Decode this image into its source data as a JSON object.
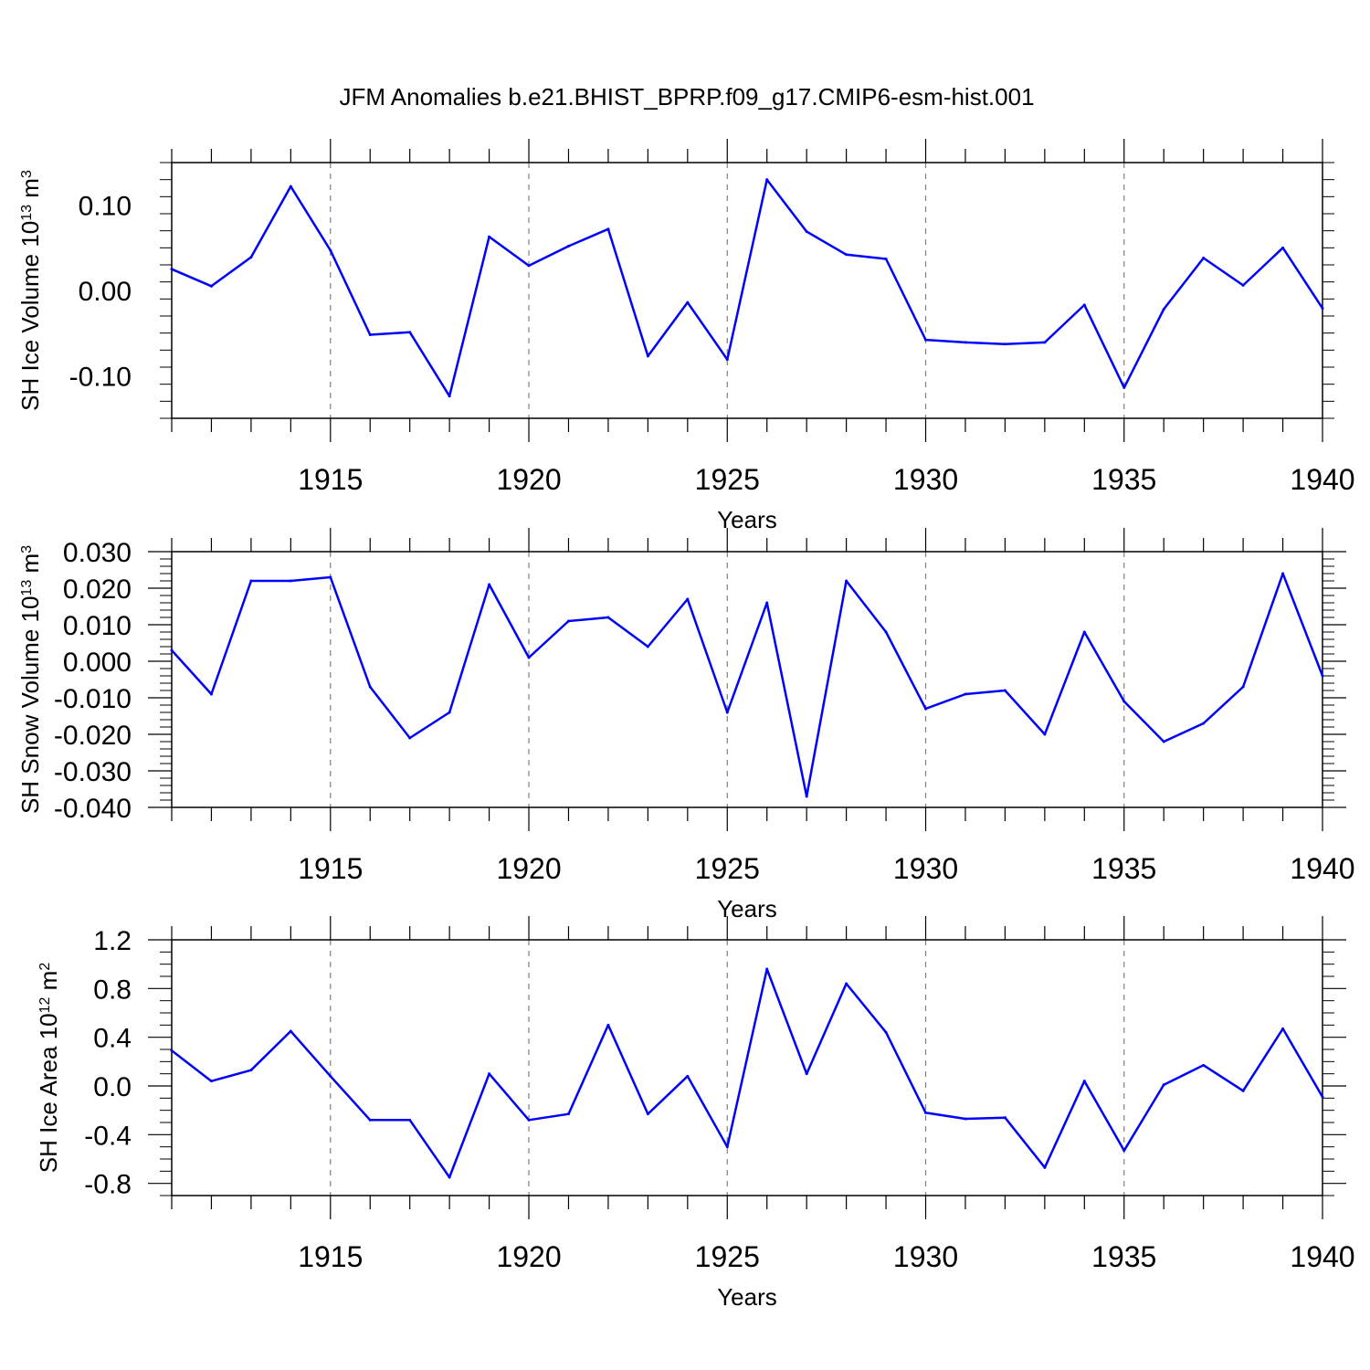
{
  "title": "JFM Anomalies b.e21.BHIST_BPRP.f09_g17.CMIP6-esm-hist.001",
  "style": {
    "line_color": "#0000ff",
    "axis_color": "#000000",
    "grid_color": "#808080",
    "background": "#ffffff"
  },
  "chart_data": [
    {
      "type": "line",
      "ylabel_base": "SH Ice Volume 10",
      "ylabel_exp": "13",
      "ylabel_unit": " m",
      "ylabel_unit_exp": "3",
      "xlabel": "Years",
      "xlim": [
        1911,
        1940
      ],
      "ylim": [
        -0.15,
        0.15
      ],
      "yticks": [
        -0.1,
        0.0,
        0.1
      ],
      "ytick_labels": [
        "-0.10",
        "0.00",
        "0.10"
      ],
      "yminor_step": 0.02,
      "xticks": [
        1915,
        1920,
        1925,
        1930,
        1935,
        1940
      ],
      "xtick_labels": [
        "1915",
        "1920",
        "1925",
        "1930",
        "1935",
        "1940"
      ],
      "grid": "dashed vertical at major x ticks",
      "x": [
        1911,
        1912,
        1913,
        1914,
        1915,
        1916,
        1917,
        1918,
        1919,
        1920,
        1921,
        1922,
        1923,
        1924,
        1925,
        1926,
        1927,
        1928,
        1929,
        1930,
        1931,
        1932,
        1933,
        1934,
        1935,
        1936,
        1937,
        1938,
        1939,
        1940
      ],
      "values": [
        0.025,
        0.005,
        0.039,
        0.122,
        0.047,
        -0.052,
        -0.049,
        -0.124,
        0.063,
        0.029,
        0.052,
        0.072,
        -0.077,
        -0.014,
        -0.081,
        0.13,
        0.069,
        0.042,
        0.037,
        -0.058,
        -0.061,
        -0.063,
        -0.061,
        -0.017,
        -0.114,
        -0.022,
        0.038,
        0.006,
        0.05,
        -0.021
      ]
    },
    {
      "type": "line",
      "ylabel_base": "SH Snow Volume 10",
      "ylabel_exp": "13",
      "ylabel_unit": " m",
      "ylabel_unit_exp": "3",
      "xlabel": "Years",
      "xlim": [
        1911,
        1940
      ],
      "ylim": [
        -0.04,
        0.03
      ],
      "yticks": [
        -0.04,
        -0.03,
        -0.02,
        -0.01,
        0.0,
        0.01,
        0.02,
        0.03
      ],
      "ytick_labels": [
        "-0.040",
        "-0.030",
        "-0.020",
        "-0.010",
        "0.000",
        "0.010",
        "0.020",
        "0.030"
      ],
      "yminor_step": 0.002,
      "xticks": [
        1915,
        1920,
        1925,
        1930,
        1935,
        1940
      ],
      "xtick_labels": [
        "1915",
        "1920",
        "1925",
        "1930",
        "1935",
        "1940"
      ],
      "grid": "dashed vertical at major x ticks",
      "x": [
        1911,
        1912,
        1913,
        1914,
        1915,
        1916,
        1917,
        1918,
        1919,
        1920,
        1921,
        1922,
        1923,
        1924,
        1925,
        1926,
        1927,
        1928,
        1929,
        1930,
        1931,
        1932,
        1933,
        1934,
        1935,
        1936,
        1937,
        1938,
        1939,
        1940
      ],
      "values": [
        0.003,
        -0.009,
        0.022,
        0.022,
        0.023,
        -0.007,
        -0.021,
        -0.014,
        0.021,
        0.001,
        0.011,
        0.012,
        0.004,
        0.017,
        -0.014,
        0.016,
        -0.037,
        0.022,
        0.008,
        -0.013,
        -0.009,
        -0.008,
        -0.02,
        0.008,
        -0.011,
        -0.022,
        -0.017,
        -0.007,
        0.024,
        -0.004
      ]
    },
    {
      "type": "line",
      "ylabel_base": "SH Ice Area 10",
      "ylabel_exp": "12",
      "ylabel_unit": " m",
      "ylabel_unit_exp": "2",
      "xlabel": "Years",
      "xlim": [
        1911,
        1940
      ],
      "ylim": [
        -0.9,
        1.2
      ],
      "yticks": [
        -0.8,
        -0.4,
        0.0,
        0.4,
        0.8,
        1.2
      ],
      "ytick_labels": [
        "-0.8",
        "-0.4",
        "0.0",
        "0.4",
        "0.8",
        "1.2"
      ],
      "yminor_step": 0.1,
      "xticks": [
        1915,
        1920,
        1925,
        1930,
        1935,
        1940
      ],
      "xtick_labels": [
        "1915",
        "1920",
        "1925",
        "1930",
        "1935",
        "1940"
      ],
      "grid": "dashed vertical at major x ticks",
      "x": [
        1911,
        1912,
        1913,
        1914,
        1915,
        1916,
        1917,
        1918,
        1919,
        1920,
        1921,
        1922,
        1923,
        1924,
        1925,
        1926,
        1927,
        1928,
        1929,
        1930,
        1931,
        1932,
        1933,
        1934,
        1935,
        1936,
        1937,
        1938,
        1939,
        1940
      ],
      "values": [
        0.29,
        0.04,
        0.13,
        0.45,
        0.08,
        -0.28,
        -0.28,
        -0.75,
        0.1,
        -0.28,
        -0.23,
        0.5,
        -0.23,
        0.08,
        -0.5,
        0.96,
        0.1,
        0.84,
        0.44,
        -0.22,
        -0.27,
        -0.26,
        -0.67,
        0.04,
        -0.53,
        0.01,
        0.17,
        -0.04,
        0.47,
        -0.09
      ]
    }
  ]
}
